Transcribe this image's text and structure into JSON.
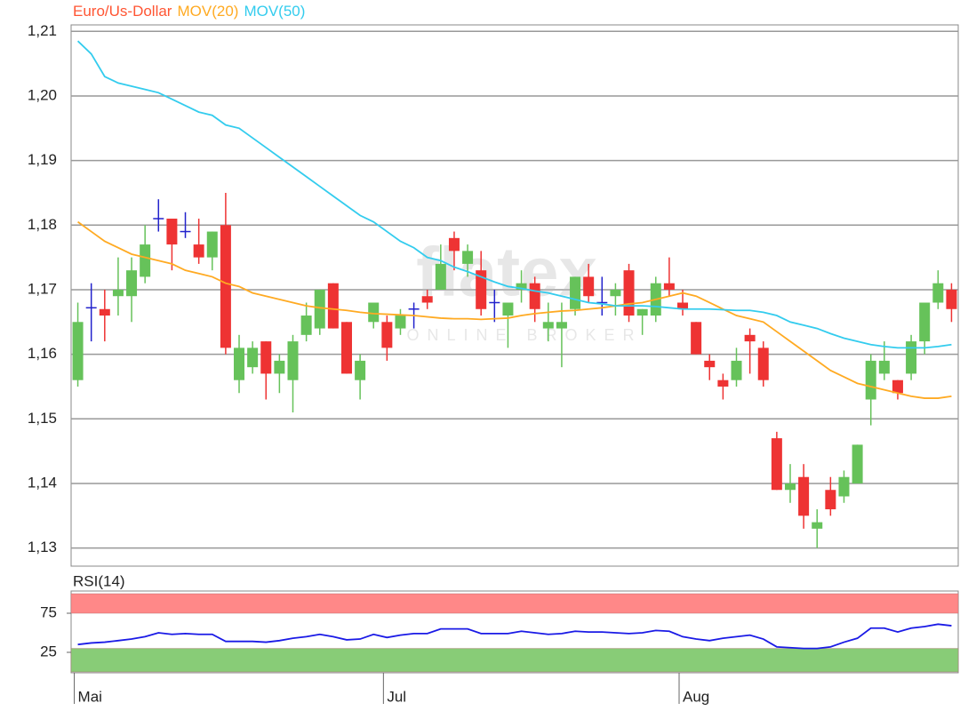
{
  "chart_data": [
    {
      "type": "candlestick",
      "watermark": {
        "logo": "flatex",
        "tagline": "ONLINE BROKER"
      },
      "ylim": [
        1.1272,
        1.211
      ],
      "yticks": [
        {
          "value": 1.13,
          "label": "1,13"
        },
        {
          "value": 1.14,
          "label": "1,14"
        },
        {
          "value": 1.15,
          "label": "1,15"
        },
        {
          "value": 1.16,
          "label": "1,16"
        },
        {
          "value": 1.17,
          "label": "1,17"
        },
        {
          "value": 1.18,
          "label": "1,18"
        },
        {
          "value": 1.19,
          "label": "1,19"
        },
        {
          "value": 1.2,
          "label": "1,20"
        },
        {
          "value": 1.21,
          "label": "1,21"
        }
      ],
      "grid": true,
      "up_color": "#66c25a",
      "down_color": "#ee3333",
      "doji_color": "#2222cc",
      "series": [
        {
          "name": "Euro/Us-Dollar",
          "color": "#ff5533",
          "open": [
            1.156,
            1.1672,
            1.167,
            1.169,
            1.169,
            1.172,
            1.181,
            1.181,
            1.179,
            1.177,
            1.175,
            1.18,
            1.156,
            1.158,
            1.162,
            1.157,
            1.156,
            1.163,
            1.164,
            1.171,
            1.165,
            1.156,
            1.165,
            1.165,
            1.164,
            1.167,
            1.169,
            1.17,
            1.178,
            1.174,
            1.173,
            1.168,
            1.166,
            1.17,
            1.171,
            1.164,
            1.164,
            1.167,
            1.172,
            1.168,
            1.169,
            1.173,
            1.166,
            1.166,
            1.171,
            1.168,
            1.165,
            1.159,
            1.156,
            1.156,
            1.163,
            1.161,
            1.147,
            1.139,
            1.141,
            1.133,
            1.139,
            1.138,
            1.14,
            1.153,
            1.157,
            1.156,
            1.157,
            1.162,
            1.168,
            1.17
          ],
          "high": [
            1.168,
            1.171,
            1.17,
            1.175,
            1.175,
            1.18,
            1.184,
            1.181,
            1.182,
            1.181,
            1.179,
            1.185,
            1.163,
            1.162,
            1.162,
            1.16,
            1.163,
            1.168,
            1.17,
            1.171,
            1.165,
            1.16,
            1.168,
            1.166,
            1.167,
            1.168,
            1.17,
            1.177,
            1.179,
            1.177,
            1.176,
            1.17,
            1.168,
            1.173,
            1.172,
            1.168,
            1.168,
            1.172,
            1.174,
            1.172,
            1.171,
            1.174,
            1.167,
            1.172,
            1.175,
            1.17,
            1.165,
            1.16,
            1.157,
            1.161,
            1.164,
            1.162,
            1.148,
            1.143,
            1.143,
            1.136,
            1.141,
            1.142,
            1.146,
            1.16,
            1.162,
            1.156,
            1.163,
            1.168,
            1.173,
            1.171
          ],
          "low": [
            1.155,
            1.162,
            1.162,
            1.166,
            1.165,
            1.171,
            1.179,
            1.173,
            1.178,
            1.174,
            1.173,
            1.16,
            1.154,
            1.157,
            1.153,
            1.154,
            1.151,
            1.162,
            1.163,
            1.164,
            1.157,
            1.153,
            1.164,
            1.159,
            1.163,
            1.164,
            1.167,
            1.17,
            1.173,
            1.172,
            1.166,
            1.165,
            1.161,
            1.168,
            1.165,
            1.162,
            1.158,
            1.166,
            1.168,
            1.166,
            1.166,
            1.165,
            1.163,
            1.165,
            1.169,
            1.166,
            1.16,
            1.156,
            1.153,
            1.155,
            1.157,
            1.155,
            1.139,
            1.137,
            1.133,
            1.13,
            1.135,
            1.137,
            1.14,
            1.149,
            1.156,
            1.153,
            1.156,
            1.16,
            1.167,
            1.165
          ],
          "close": [
            1.165,
            1.1672,
            1.166,
            1.17,
            1.173,
            1.177,
            1.181,
            1.177,
            1.179,
            1.175,
            1.179,
            1.161,
            1.161,
            1.161,
            1.157,
            1.159,
            1.162,
            1.166,
            1.17,
            1.164,
            1.157,
            1.159,
            1.168,
            1.161,
            1.166,
            1.167,
            1.168,
            1.174,
            1.176,
            1.176,
            1.167,
            1.168,
            1.168,
            1.171,
            1.167,
            1.165,
            1.165,
            1.172,
            1.169,
            1.168,
            1.17,
            1.166,
            1.167,
            1.171,
            1.17,
            1.167,
            1.16,
            1.158,
            1.155,
            1.159,
            1.162,
            1.156,
            1.139,
            1.14,
            1.135,
            1.134,
            1.136,
            1.141,
            1.146,
            1.159,
            1.159,
            1.154,
            1.162,
            1.168,
            1.171,
            1.167
          ]
        },
        {
          "name": "MOV(20)",
          "color": "#ffaa22",
          "values": [
            1.1805,
            1.179,
            1.1775,
            1.1765,
            1.1755,
            1.175,
            1.1745,
            1.174,
            1.173,
            1.1725,
            1.172,
            1.171,
            1.1705,
            1.1695,
            1.169,
            1.1685,
            1.168,
            1.1675,
            1.1672,
            1.167,
            1.1668,
            1.1665,
            1.1663,
            1.1662,
            1.1661,
            1.166,
            1.1658,
            1.1656,
            1.1655,
            1.1655,
            1.1654,
            1.1655,
            1.1656,
            1.166,
            1.1663,
            1.1665,
            1.1667,
            1.1668,
            1.167,
            1.1672,
            1.1675,
            1.1678,
            1.168,
            1.1685,
            1.169,
            1.1695,
            1.169,
            1.168,
            1.167,
            1.166,
            1.1655,
            1.165,
            1.1635,
            1.162,
            1.1605,
            1.159,
            1.1575,
            1.1565,
            1.1555,
            1.155,
            1.1545,
            1.154,
            1.1535,
            1.1532,
            1.1532,
            1.1535
          ]
        },
        {
          "name": "MOV(50)",
          "color": "#33ccee",
          "values": [
            1.2085,
            1.2065,
            1.203,
            1.202,
            1.2015,
            1.201,
            1.2005,
            1.1995,
            1.1985,
            1.1975,
            1.197,
            1.1955,
            1.195,
            1.1935,
            1.192,
            1.1905,
            1.189,
            1.1875,
            1.186,
            1.1845,
            1.183,
            1.1815,
            1.1805,
            1.179,
            1.1775,
            1.1765,
            1.175,
            1.1745,
            1.1735,
            1.1728,
            1.172,
            1.1712,
            1.1705,
            1.1702,
            1.1698,
            1.1695,
            1.169,
            1.1685,
            1.168,
            1.1678,
            1.1675,
            1.1675,
            1.1675,
            1.1674,
            1.1672,
            1.167,
            1.167,
            1.167,
            1.1669,
            1.1668,
            1.1668,
            1.1665,
            1.166,
            1.165,
            1.1645,
            1.164,
            1.1632,
            1.1625,
            1.162,
            1.1615,
            1.1612,
            1.161,
            1.161,
            1.161,
            1.1612,
            1.1615
          ]
        }
      ]
    },
    {
      "type": "line",
      "ylim": [
        0,
        100
      ],
      "yticks": [
        75,
        25
      ],
      "bands": [
        {
          "from": 75,
          "to": 100,
          "color": "#ff8888"
        },
        {
          "from": 0,
          "to": 30,
          "color": "#88cc77"
        }
      ],
      "categories": [
        "Mai",
        null,
        null,
        null,
        null,
        null,
        null,
        null,
        null,
        null,
        null,
        null,
        null,
        null,
        null,
        null,
        null,
        null,
        null,
        null,
        null,
        null,
        null,
        "Jul",
        null,
        null,
        null,
        null,
        null,
        null,
        null,
        null,
        null,
        null,
        null,
        null,
        null,
        null,
        null,
        null,
        null,
        null,
        null,
        null,
        null,
        "Aug",
        null,
        null,
        null,
        null,
        null,
        null,
        null,
        null,
        null,
        null,
        null,
        null,
        null,
        null,
        null,
        null,
        null,
        null,
        null,
        null
      ],
      "series": [
        {
          "name": "RSI(14)",
          "color": "#1a1ae6",
          "values": [
            35,
            37,
            38,
            40,
            42,
            45,
            50,
            48,
            49,
            48,
            48,
            39,
            39,
            39,
            38,
            40,
            43,
            45,
            48,
            45,
            41,
            42,
            48,
            44,
            47,
            49,
            49,
            55,
            55,
            55,
            49,
            49,
            49,
            52,
            50,
            48,
            49,
            52,
            51,
            51,
            50,
            49,
            50,
            53,
            52,
            45,
            42,
            40,
            43,
            45,
            47,
            42,
            32,
            31,
            30,
            30,
            32,
            38,
            43,
            56,
            56,
            51,
            56,
            58,
            61,
            59
          ]
        }
      ]
    }
  ]
}
